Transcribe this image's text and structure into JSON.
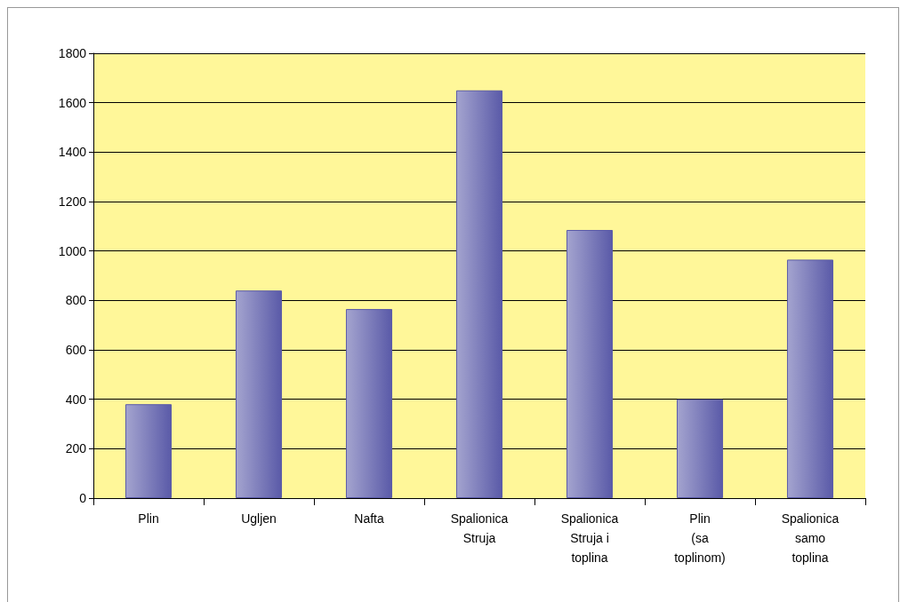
{
  "chart_data": {
    "type": "bar",
    "categories": [
      "Plin",
      "Ugljen",
      "Nafta",
      "Spalionica\nStruja",
      "Spalionica\nStruja i\ntoplina",
      "Plin\n(sa\ntoplinom)",
      "Spalionica\nsamo\ntoplina"
    ],
    "values": [
      380,
      840,
      765,
      1650,
      1085,
      400,
      965
    ],
    "color": "#5a5aa8",
    "ylim": [
      0,
      1800
    ],
    "yticks": [
      0,
      200,
      400,
      600,
      800,
      1000,
      1200,
      1400,
      1600,
      1800
    ],
    "grid": "y"
  }
}
